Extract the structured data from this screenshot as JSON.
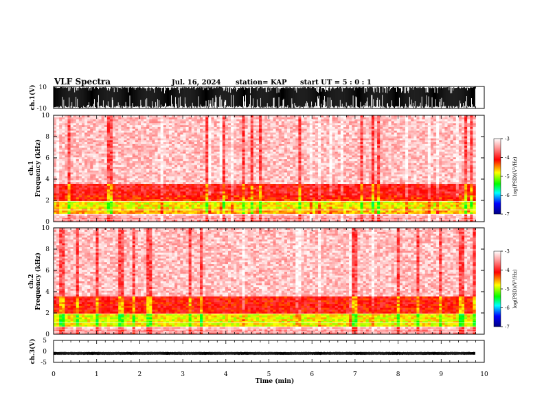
{
  "header": {
    "title": "VLF Spectra",
    "date": "Jul. 16, 2024",
    "station": "station= KAP",
    "start_ut": "start  UT =  5 : 0  : 1"
  },
  "panels": {
    "ch1_wave": {
      "ylabel": "ch.1(V)",
      "ytick_top": "10",
      "ytick_bottom": "-10"
    },
    "ch1_spec": {
      "ylabel_line1": "ch.1",
      "ylabel_line2": "Frequency (kHz)",
      "yticks": [
        "0",
        "2",
        "4",
        "6",
        "8",
        "10"
      ]
    },
    "ch2_spec": {
      "ylabel_line1": "ch.2",
      "ylabel_line2": "Frequency (kHz)",
      "yticks": [
        "0",
        "2",
        "4",
        "6",
        "8",
        "10"
      ]
    },
    "ch3_wave": {
      "ylabel": "ch.3(V)",
      "ytick_top": "5",
      "ytick_mid": "0",
      "ytick_bottom": "-5"
    },
    "xaxis": {
      "label": "Time (min)",
      "ticks": [
        "0",
        "1",
        "2",
        "3",
        "4",
        "5",
        "6",
        "7",
        "8",
        "9",
        "10"
      ]
    }
  },
  "colorbar": {
    "label": "log(PSD)(V²/Hz)",
    "ticks": [
      "-3",
      "-4",
      "-5",
      "-6",
      "-7"
    ],
    "colors": [
      "#ffffff",
      "#ff6060",
      "#ff0000",
      "#ffff00",
      "#00ff00",
      "#00ffff",
      "#0000ff",
      "#000080"
    ]
  },
  "chart_data": [
    {
      "type": "line",
      "title": "VLF Spectra",
      "ylabel": "ch.1(V)",
      "xlabel": "Time (min)",
      "xlim": [
        0,
        10
      ],
      "ylim": [
        -10,
        10
      ],
      "note": "saturated broadband waveform filling most of the range, data ends near 9.8 min"
    },
    {
      "type": "heatmap",
      "ylabel": "Frequency (kHz)",
      "xlim": [
        0,
        10
      ],
      "ylim": [
        0,
        10
      ],
      "zlabel": "log(PSD)(V²/Hz)",
      "zlim": [
        -7,
        -3
      ],
      "bands": [
        {
          "freq_range_khz": [
            0.0,
            0.5
          ],
          "level": -3.5
        },
        {
          "freq_range_khz": [
            0.8,
            1.2
          ],
          "level": -4.6
        },
        {
          "freq_range_khz": [
            1.2,
            1.9
          ],
          "level": -4.8
        },
        {
          "freq_range_khz": [
            1.9,
            2.5
          ],
          "level": -4.2
        },
        {
          "freq_range_khz": [
            2.5,
            3.5
          ],
          "level": -4.0
        },
        {
          "freq_range_khz": [
            3.5,
            10.0
          ],
          "level": -3.3
        }
      ],
      "series_name": "ch.1"
    },
    {
      "type": "heatmap",
      "ylabel": "Frequency (kHz)",
      "xlim": [
        0,
        10
      ],
      "ylim": [
        0,
        10
      ],
      "zlabel": "log(PSD)(V²/Hz)",
      "zlim": [
        -7,
        -3
      ],
      "bands": [
        {
          "freq_range_khz": [
            0.0,
            0.5
          ],
          "level": -3.5
        },
        {
          "freq_range_khz": [
            0.8,
            2.0
          ],
          "level": -4.8
        },
        {
          "freq_range_khz": [
            2.0,
            3.5
          ],
          "level": -4.1
        },
        {
          "freq_range_khz": [
            3.5,
            10.0
          ],
          "level": -3.3
        }
      ],
      "series_name": "ch.2"
    },
    {
      "type": "line",
      "ylabel": "ch.3(V)",
      "xlabel": "Time (min)",
      "xlim": [
        0,
        10
      ],
      "ylim": [
        -5,
        5
      ],
      "note": "flat noisy trace centered near -1 V, data ends near 9.8 min"
    }
  ]
}
